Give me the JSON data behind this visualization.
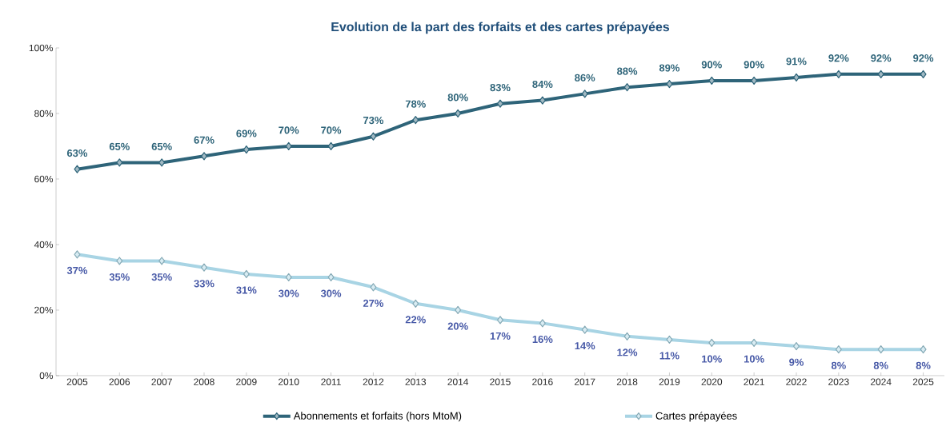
{
  "chart_data": {
    "type": "line",
    "title": "Evolution de la part des forfaits et des cartes prépayées",
    "categories": [
      "2005",
      "2006",
      "2007",
      "2008",
      "2009",
      "2010",
      "2011",
      "2012",
      "2013",
      "2014",
      "2015",
      "2016",
      "2017",
      "2018",
      "2019",
      "2020",
      "2021",
      "2022",
      "2023",
      "2024",
      "2025"
    ],
    "series": [
      {
        "name": "Abonnements et forfaits (hors MtoM)",
        "color": "#2e6479",
        "values": [
          63,
          65,
          65,
          67,
          69,
          70,
          70,
          73,
          78,
          80,
          83,
          84,
          86,
          88,
          89,
          90,
          90,
          91,
          92,
          92,
          92
        ],
        "value_labels": [
          "63%",
          "65%",
          "65%",
          "67%",
          "69%",
          "70%",
          "70%",
          "73%",
          "78%",
          "80%",
          "83%",
          "84%",
          "86%",
          "88%",
          "89%",
          "90%",
          "90%",
          "91%",
          "92%",
          "92%",
          "92%"
        ]
      },
      {
        "name": "Cartes prépayées",
        "color": "#a8d4e4",
        "values": [
          37,
          35,
          35,
          33,
          31,
          30,
          30,
          27,
          22,
          20,
          17,
          16,
          14,
          12,
          11,
          10,
          10,
          9,
          8,
          8,
          8
        ],
        "value_labels": [
          "37%",
          "35%",
          "35%",
          "33%",
          "31%",
          "30%",
          "30%",
          "27%",
          "22%",
          "20%",
          "17%",
          "16%",
          "14%",
          "12%",
          "11%",
          "10%",
          "10%",
          "9%",
          "8%",
          "8%",
          "8%"
        ]
      }
    ],
    "ylim": [
      0,
      100
    ],
    "yticks": [
      {
        "value": 0,
        "label": "0%"
      },
      {
        "value": 20,
        "label": "20%"
      },
      {
        "value": 40,
        "label": "40%"
      },
      {
        "value": 60,
        "label": "60%"
      },
      {
        "value": 80,
        "label": "80%"
      },
      {
        "value": 100,
        "label": "100%"
      }
    ],
    "marker": "diamond",
    "line_style": "solid",
    "legend": "bottom",
    "grid": false
  }
}
